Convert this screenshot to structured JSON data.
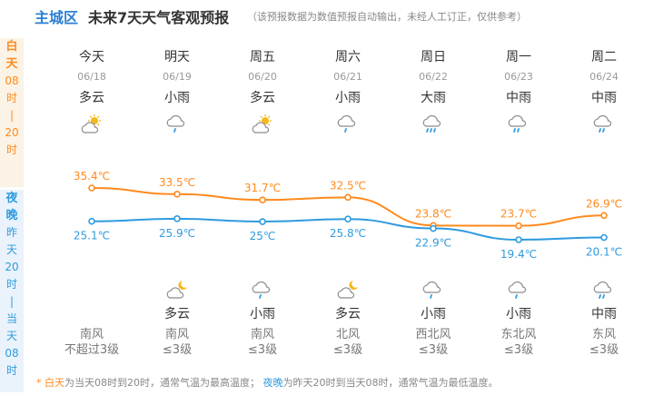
{
  "header": {
    "city": "主城区",
    "title": "未来7天天气客观预报",
    "note": "（该预报数据为数值预报自动输出，未经人工订正，仅供参考）"
  },
  "strip": {
    "day": [
      "白",
      "天",
      "08",
      "时",
      "|",
      "20",
      "时"
    ],
    "night": [
      "夜",
      "晚",
      "昨",
      "天",
      "20",
      "时",
      "|",
      "当",
      "天",
      "08",
      "时"
    ]
  },
  "days": [
    {
      "name": "今天",
      "date": "06/18",
      "day_weather": "多云",
      "day_icon": "partly-cloudy-sun-icon",
      "night_weather": "",
      "night_icon": "",
      "wind_dir": "南风",
      "wind_level": "不超过3级",
      "high": 35.4,
      "high_label": "35.4℃",
      "low": 25.1,
      "low_label": "25.1℃"
    },
    {
      "name": "明天",
      "date": "06/19",
      "day_weather": "小雨",
      "day_icon": "light-rain-icon",
      "night_weather": "多云",
      "night_icon": "partly-cloudy-moon-icon",
      "wind_dir": "南风",
      "wind_level": "≤3级",
      "high": 33.5,
      "high_label": "33.5℃",
      "low": 25.9,
      "low_label": "25.9℃"
    },
    {
      "name": "周五",
      "date": "06/20",
      "day_weather": "多云",
      "day_icon": "partly-cloudy-sun-icon",
      "night_weather": "小雨",
      "night_icon": "light-rain-icon",
      "wind_dir": "南风",
      "wind_level": "≤3级",
      "high": 31.7,
      "high_label": "31.7℃",
      "low": 25,
      "low_label": "25℃"
    },
    {
      "name": "周六",
      "date": "06/21",
      "day_weather": "小雨",
      "day_icon": "light-rain-icon",
      "night_weather": "多云",
      "night_icon": "partly-cloudy-moon-icon",
      "wind_dir": "北风",
      "wind_level": "≤3级",
      "high": 32.5,
      "high_label": "32.5℃",
      "low": 25.8,
      "low_label": "25.8℃"
    },
    {
      "name": "周日",
      "date": "06/22",
      "day_weather": "大雨",
      "day_icon": "heavy-rain-icon",
      "night_weather": "小雨",
      "night_icon": "light-rain-icon",
      "wind_dir": "西北风",
      "wind_level": "≤3级",
      "high": 23.8,
      "high_label": "23.8℃",
      "low": 22.9,
      "low_label": "22.9℃"
    },
    {
      "name": "周一",
      "date": "06/23",
      "day_weather": "中雨",
      "day_icon": "moderate-rain-icon",
      "night_weather": "小雨",
      "night_icon": "light-rain-icon",
      "wind_dir": "东北风",
      "wind_level": "≤3级",
      "high": 23.7,
      "high_label": "23.7℃",
      "low": 19.4,
      "low_label": "19.4℃"
    },
    {
      "name": "周二",
      "date": "06/24",
      "day_weather": "中雨",
      "day_icon": "moderate-rain-icon",
      "night_weather": "中雨",
      "night_icon": "moderate-rain-icon",
      "wind_dir": "东风",
      "wind_level": "≤3级",
      "high": 26.9,
      "high_label": "26.9℃",
      "low": 20.1,
      "low_label": "20.1℃"
    }
  ],
  "chart_data": {
    "type": "line",
    "x": [
      "06/18",
      "06/19",
      "06/20",
      "06/21",
      "06/22",
      "06/23",
      "06/24"
    ],
    "series": [
      {
        "values": [
          35.4,
          33.5,
          31.7,
          32.5,
          23.8,
          23.7,
          26.9
        ],
        "color": "#ff8a1e"
      },
      {
        "values": [
          25.1,
          25.9,
          25,
          25.8,
          22.9,
          19.4,
          20.1
        ],
        "color": "#2f9bdf"
      }
    ]
  },
  "footnote": {
    "star": "* ",
    "day": "白天",
    "day_text": "为当天08时到20时，通常气温为最高温度；",
    "night": "夜晚",
    "night_text": "为昨天20时到当天08时，通常气温为最低温度。"
  },
  "colors": {
    "high": "#ff8a1e",
    "low": "#2f9bdf",
    "accent": "#2b7fd4"
  }
}
